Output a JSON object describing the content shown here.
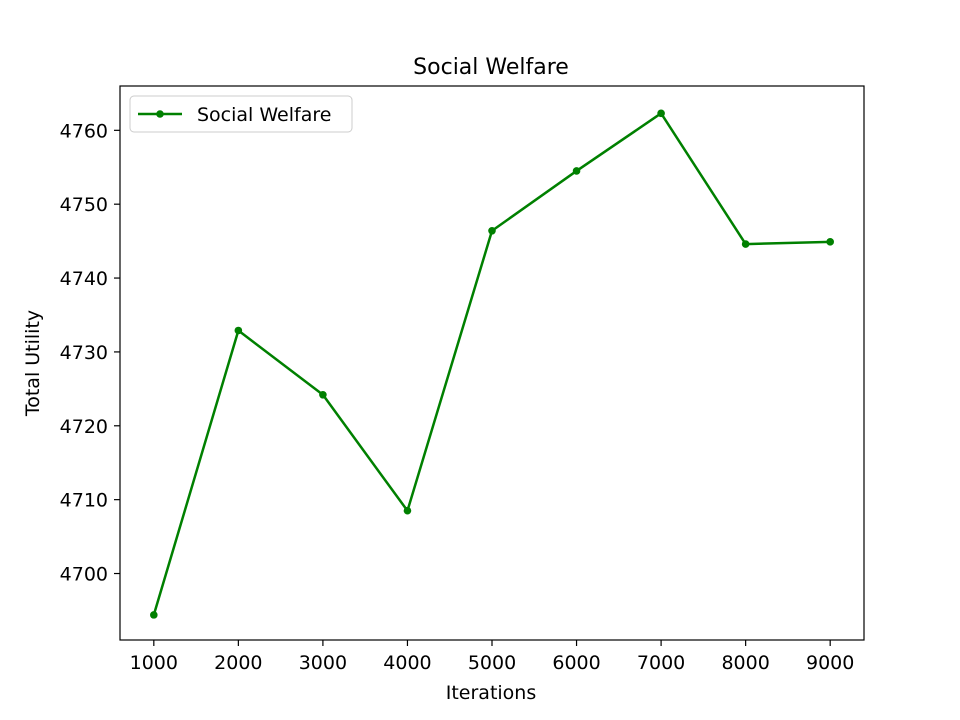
{
  "chart_data": {
    "type": "line",
    "title": "Social Welfare",
    "xlabel": "Iterations",
    "ylabel": "Total Utility",
    "xlim": [
      600,
      9400
    ],
    "ylim": [
      4691,
      4766
    ],
    "xticks": [
      1000,
      2000,
      3000,
      4000,
      5000,
      6000,
      7000,
      8000,
      9000
    ],
    "yticks": [
      4700,
      4710,
      4720,
      4730,
      4740,
      4750,
      4760
    ],
    "grid": false,
    "legend_position": "top-left",
    "series": [
      {
        "name": "Social Welfare",
        "color": "#008000",
        "marker": "circle",
        "x": [
          1000,
          2000,
          3000,
          4000,
          5000,
          6000,
          7000,
          8000,
          9000
        ],
        "y": [
          4694.4,
          4732.9,
          4724.2,
          4708.5,
          4746.4,
          4754.5,
          4762.3,
          4744.6,
          4744.9
        ]
      }
    ]
  }
}
